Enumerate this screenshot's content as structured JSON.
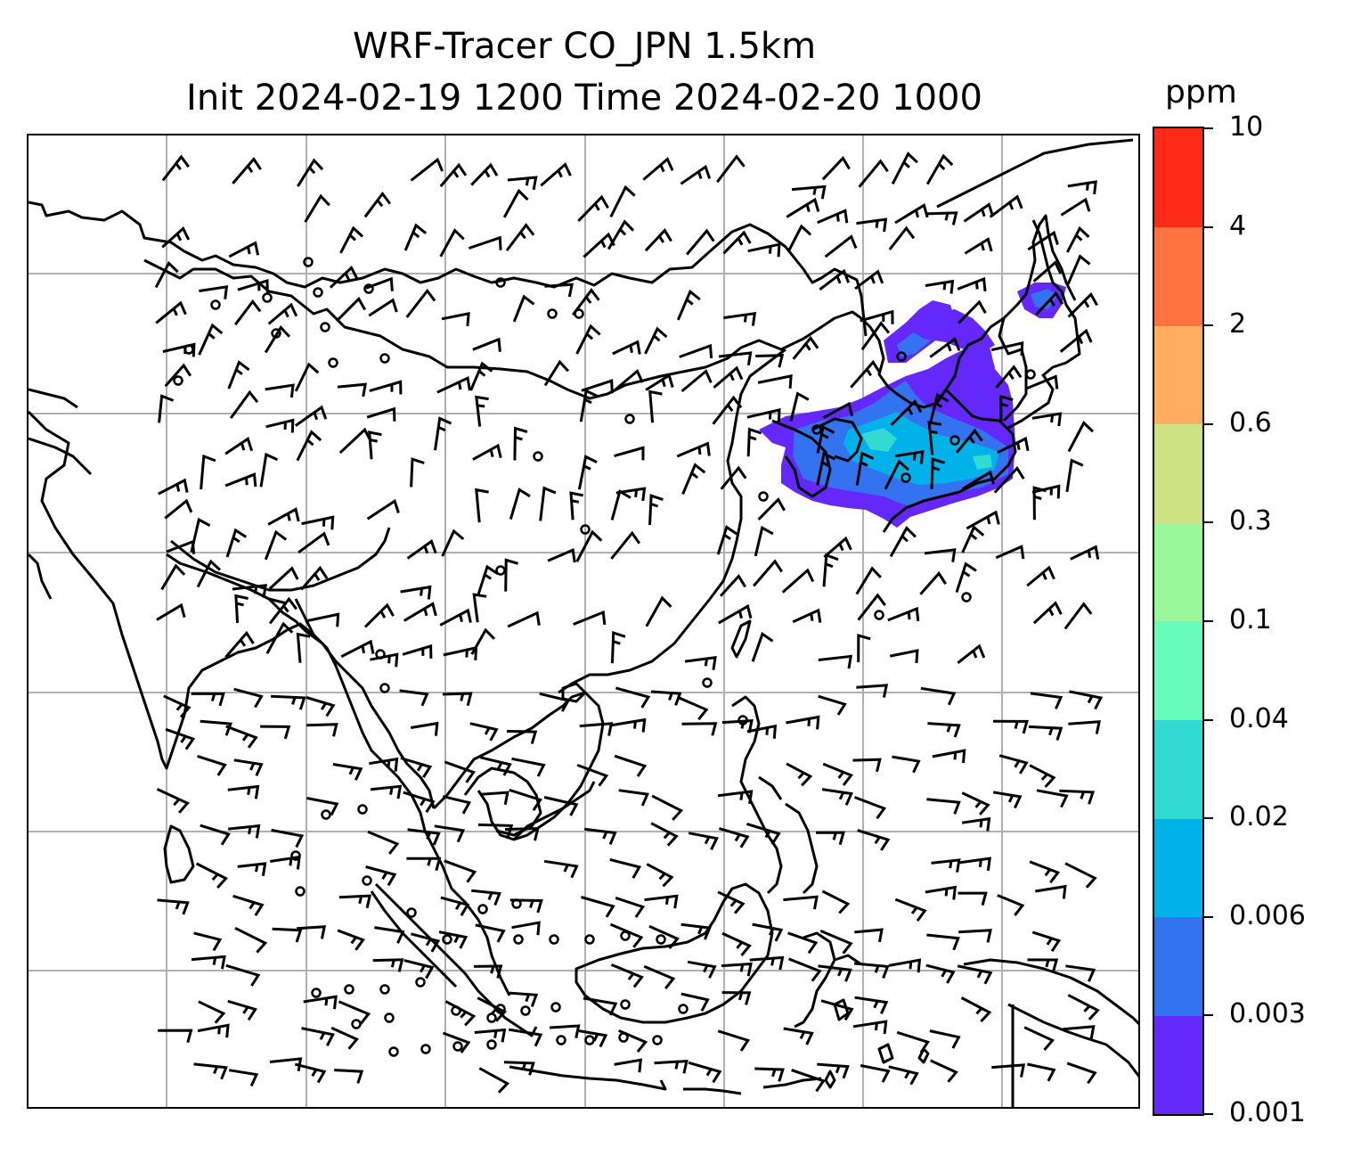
{
  "title": {
    "line1": "WRF-Tracer CO_JPN 1.5km",
    "line2": "Init 2024-02-19 1200 Time 2024-02-20 1000"
  },
  "colorbar": {
    "unit": "ppm",
    "levels": [
      "0.001",
      "0.003",
      "0.006",
      "0.02",
      "0.04",
      "0.1",
      "0.3",
      "0.6",
      "2",
      "4",
      "10"
    ],
    "colors": [
      "#6428fa",
      "#3373f0",
      "#00b1ea",
      "#33dad2",
      "#66fbbb",
      "#99f99a",
      "#cce283",
      "#ffae5f",
      "#ff7340",
      "#ff2b18"
    ]
  },
  "map": {
    "gridlines": "on",
    "background": "#ffffff",
    "coastline_color": "#000000",
    "grid_color": "#b0b0b0"
  }
}
